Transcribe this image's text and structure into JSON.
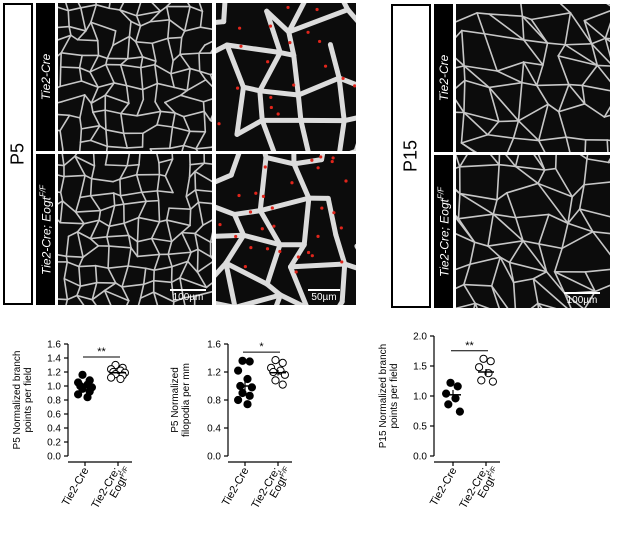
{
  "panels": {
    "p5": {
      "stage_label": "P5",
      "genotype_top": "Tie2-Cre",
      "genotype_bottom_main": "Tie2-Cre; Eogt",
      "genotype_bottom_sup": "F/F",
      "scale_left": "100µm",
      "scale_right": "50µm"
    },
    "p15": {
      "stage_label": "P15",
      "genotype_top": "Tie2-Cre",
      "genotype_bottom_main": "Tie2-Cre; Eogt",
      "genotype_bottom_sup": "F/F",
      "scale": "100µm"
    }
  },
  "colors": {
    "vessel": "#e8e8e8",
    "background": "#0c0c0c",
    "filopodia_marker": "#e0251b"
  },
  "chart_data": [
    {
      "type": "scatter",
      "ylabel_line1": "P5 Normalized branch",
      "ylabel_line2": "points per field",
      "categories": [
        "Tie2-Cre",
        "Tie2-Cre;",
        "Eogt"
      ],
      "category_sup": "F/F",
      "ylim": [
        0,
        1.6
      ],
      "yticks": [
        "0.0",
        "0.2",
        "0.4",
        "0.6",
        "0.8",
        "1.0",
        "1.2",
        "1.4",
        "1.6"
      ],
      "significance": "**",
      "series": [
        {
          "marker": "filled",
          "mean": 1.0,
          "sem": 0.03,
          "values": [
            1.16,
            1.08,
            1.05,
            1.02,
            1.0,
            0.98,
            0.96,
            0.92,
            0.88,
            0.84
          ]
        },
        {
          "marker": "open",
          "mean": 1.19,
          "sem": 0.02,
          "values": [
            1.3,
            1.26,
            1.24,
            1.22,
            1.2,
            1.19,
            1.17,
            1.15,
            1.12,
            1.1
          ]
        }
      ]
    },
    {
      "type": "scatter",
      "ylabel_line1": "P5 Normalized",
      "ylabel_line2": "filopodia per mm",
      "categories": [
        "Tie2-Cre",
        "Tie2-Cre;",
        "Eogt"
      ],
      "category_sup": "F/F",
      "ylim": [
        0,
        1.6
      ],
      "yticks": [
        "0.0",
        "0.4",
        "0.8",
        "1.2",
        "1.6"
      ],
      "significance": "*",
      "series": [
        {
          "marker": "filled",
          "mean": 1.0,
          "sem": 0.07,
          "values": [
            1.36,
            1.35,
            1.22,
            1.1,
            1.0,
            0.98,
            0.9,
            0.86,
            0.8,
            0.74
          ]
        },
        {
          "marker": "open",
          "mean": 1.19,
          "sem": 0.04,
          "values": [
            1.37,
            1.33,
            1.26,
            1.22,
            1.2,
            1.16,
            1.08,
            1.02
          ]
        }
      ]
    },
    {
      "type": "scatter",
      "ylabel_line1": "P15 Normalized branch",
      "ylabel_line2": "points per field",
      "categories": [
        "Tie2-Cre",
        "Tie2-Cre;",
        "Eogt"
      ],
      "category_sup": "F/F",
      "ylim": [
        0,
        2.0
      ],
      "yticks": [
        "0.0",
        "0.5",
        "1.0",
        "1.5",
        "2.0"
      ],
      "significance": "**",
      "series": [
        {
          "marker": "filled",
          "mean": 1.02,
          "sem": 0.08,
          "values": [
            1.22,
            1.16,
            1.04,
            0.96,
            0.86,
            0.74
          ]
        },
        {
          "marker": "open",
          "mean": 1.4,
          "sem": 0.05,
          "values": [
            1.62,
            1.58,
            1.48,
            1.38,
            1.26,
            1.24
          ]
        }
      ]
    }
  ]
}
